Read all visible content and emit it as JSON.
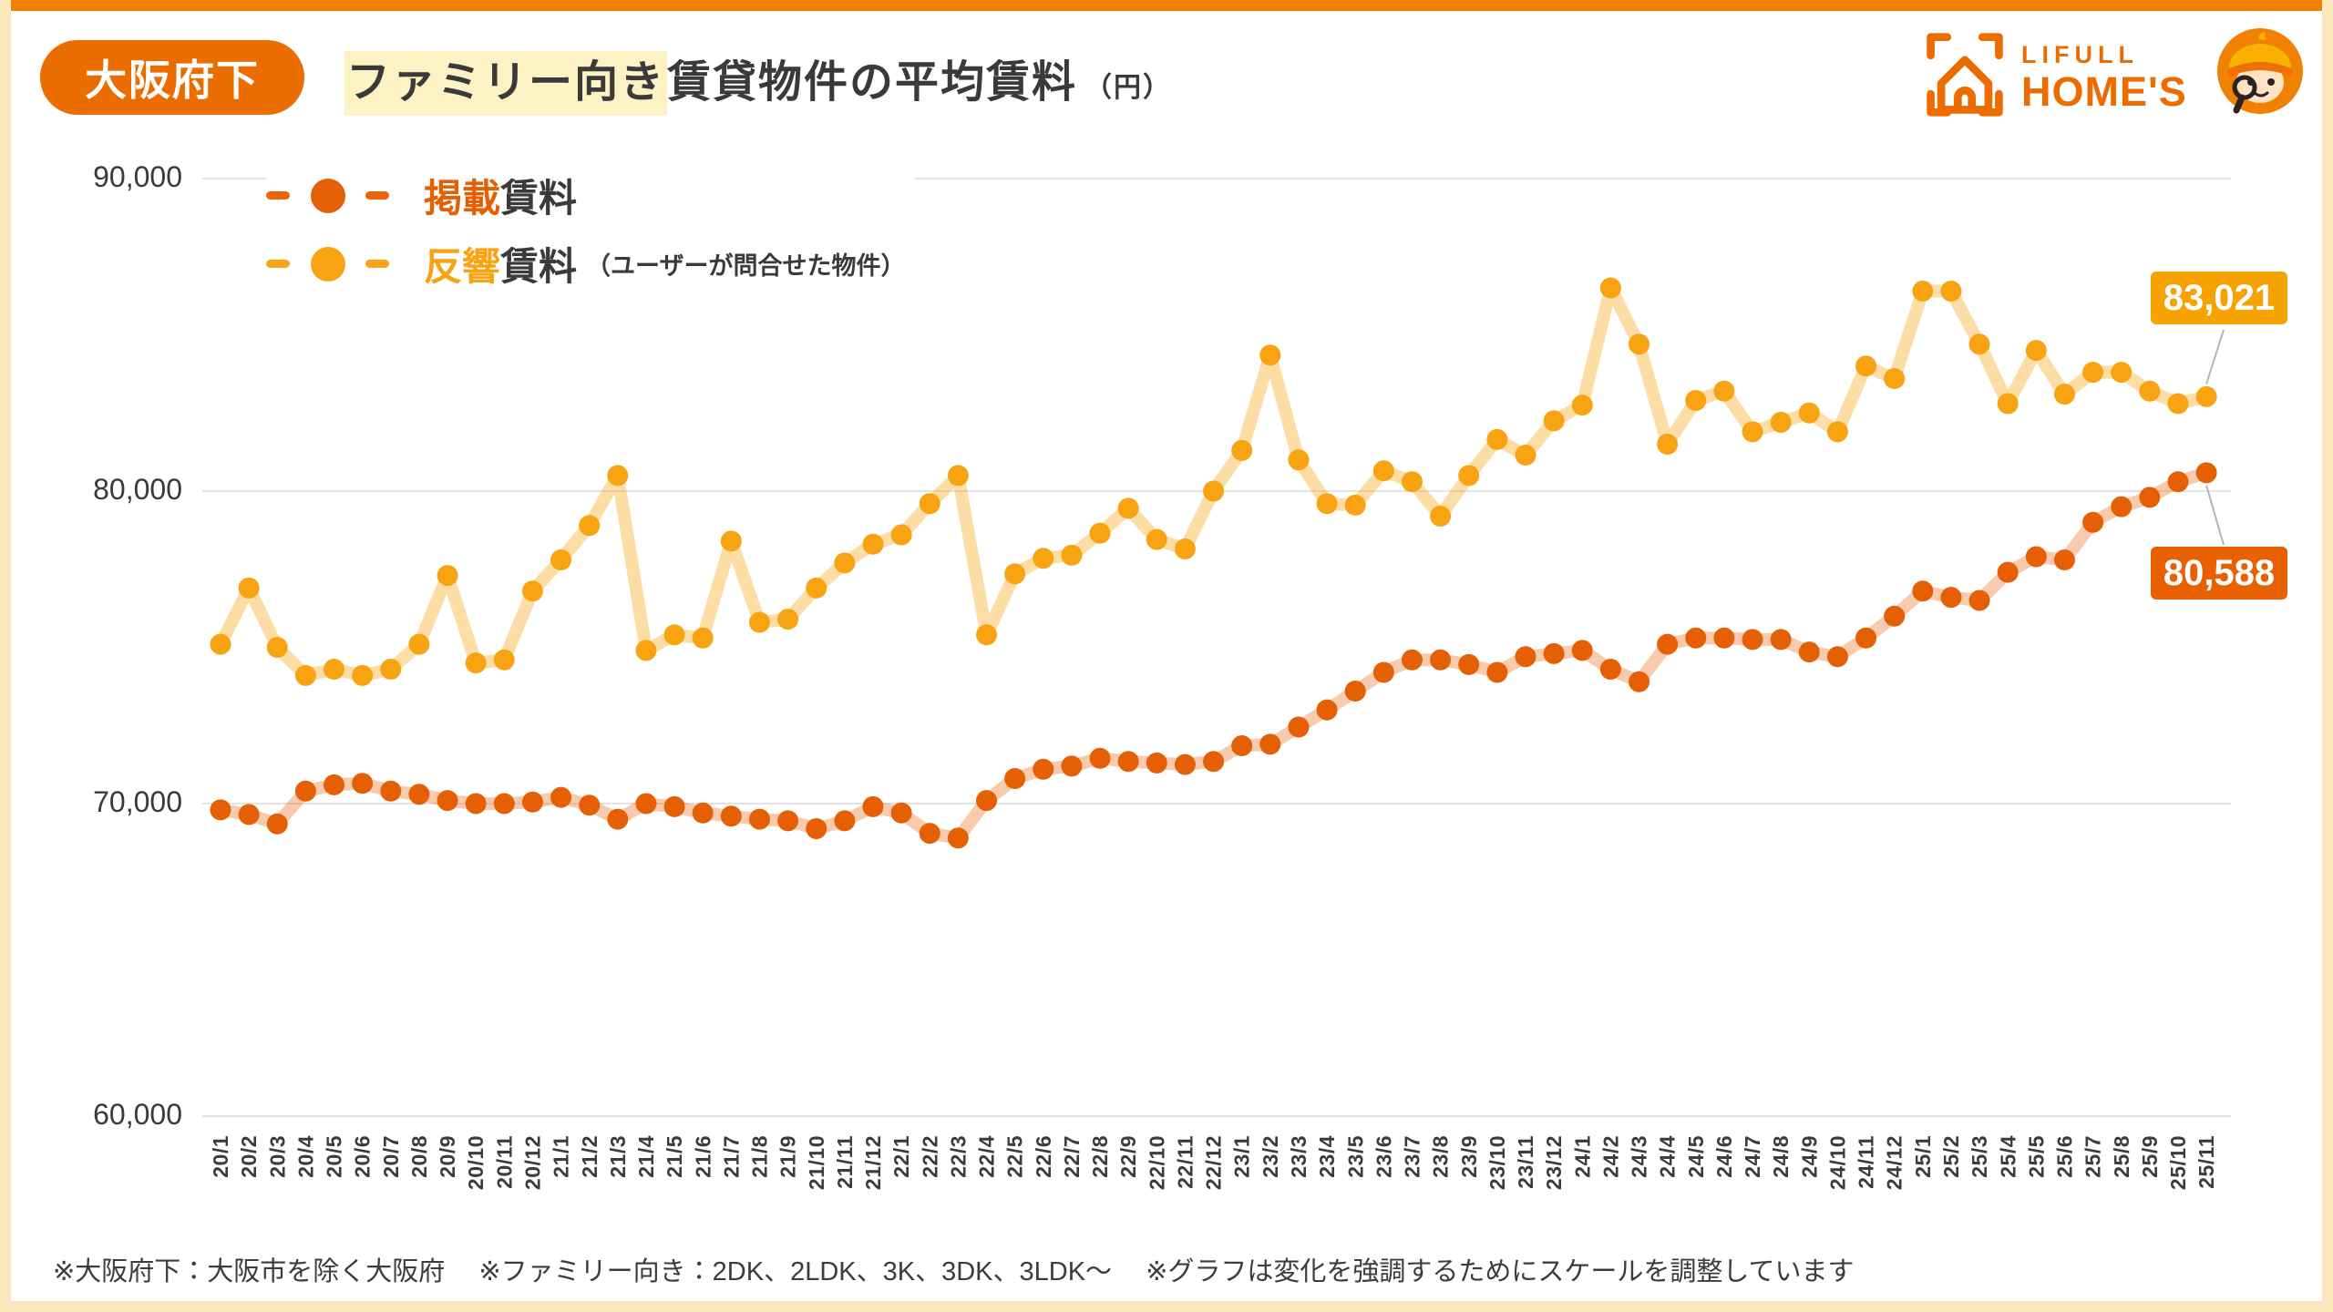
{
  "page": {
    "badge": "大阪府下",
    "title_highlight": "ファミリー向き",
    "title_rest": "賃貸物件の平均賃料",
    "title_unit": "（円）"
  },
  "logo": {
    "line1": "LIFULL",
    "line2": "HOME'S"
  },
  "legend": {
    "listed_prefix": "掲載",
    "listed_rest": "賃料",
    "inquiry_prefix": "反響",
    "inquiry_rest": "賃料",
    "inquiry_note": "（ユーザーが問合せた物件）"
  },
  "colors": {
    "brand_orange": "#ED6C00",
    "topbar": "#EF8200",
    "frame_cream": "#FAE7BE",
    "listed_marker": "#E55F04",
    "listed_line": "rgba(233,98,8,0.33)",
    "inquiry_marker": "#F7A312",
    "inquiry_line": "rgba(248,166,18,0.38)",
    "grid": "#E3E3E3",
    "text_dark": "#3A3A3A",
    "callout_listed_bg": "#E96000",
    "callout_inquiry_bg": "#F6A201"
  },
  "chart_data": {
    "type": "line",
    "grid": true,
    "ylim": [
      60000,
      90000
    ],
    "yticks": [
      90000,
      80000,
      70000,
      60000
    ],
    "ytick_labels": [
      "90,000",
      "80,000",
      "70,000",
      "60,000"
    ],
    "x_labels": [
      "20/1",
      "20/2",
      "20/3",
      "20/4",
      "20/5",
      "20/6",
      "20/7",
      "20/8",
      "20/9",
      "20/10",
      "20/11",
      "20/12",
      "21/1",
      "21/2",
      "21/3",
      "21/4",
      "21/5",
      "21/6",
      "21/7",
      "21/8",
      "21/9",
      "21/10",
      "21/11",
      "21/12",
      "22/1",
      "22/2",
      "22/3",
      "22/4",
      "22/5",
      "22/6",
      "22/7",
      "22/8",
      "22/9",
      "22/10",
      "22/11",
      "22/12",
      "23/1",
      "23/2",
      "23/3",
      "23/4",
      "23/5",
      "23/6",
      "23/7",
      "23/8",
      "23/9",
      "23/10",
      "23/11",
      "23/12",
      "24/1",
      "24/2",
      "24/3",
      "24/4",
      "24/5",
      "24/6",
      "24/7",
      "24/8",
      "24/9",
      "24/10",
      "24/11",
      "24/12",
      "25/1",
      "25/2",
      "25/3",
      "25/4",
      "25/5",
      "25/6",
      "25/7",
      "25/8",
      "25/9",
      "25/10",
      "25/11"
    ],
    "series": [
      {
        "name": "掲載賃料",
        "values": [
          69800,
          69650,
          69350,
          70400,
          70600,
          70650,
          70400,
          70300,
          70100,
          70000,
          70000,
          70050,
          70200,
          69950,
          69500,
          70000,
          69900,
          69700,
          69600,
          69500,
          69450,
          69200,
          69450,
          69900,
          69700,
          69050,
          68900,
          70100,
          70800,
          71100,
          71200,
          71450,
          71350,
          71300,
          71250,
          71350,
          71850,
          71900,
          72450,
          73000,
          73600,
          74200,
          74600,
          74600,
          74450,
          74200,
          74700,
          74800,
          74900,
          74300,
          73900,
          75100,
          75300,
          75300,
          75250,
          75250,
          74850,
          74700,
          75300,
          76000,
          76800,
          76600,
          76500,
          77400,
          77900,
          77800,
          79000,
          79500,
          79800,
          80300,
          80588
        ]
      },
      {
        "name": "反響賃料（ユーザーが問合せた物件）",
        "values": [
          75100,
          76900,
          75000,
          74100,
          74300,
          74100,
          74300,
          75100,
          77300,
          74500,
          74600,
          76800,
          77800,
          78900,
          80500,
          74900,
          75400,
          75300,
          78400,
          75800,
          75900,
          76900,
          77700,
          78300,
          78600,
          79600,
          80500,
          75400,
          77350,
          77850,
          77950,
          78650,
          79450,
          78450,
          78150,
          80000,
          81300,
          84350,
          81000,
          79600,
          79550,
          80650,
          80300,
          79200,
          80500,
          81650,
          81150,
          82250,
          82750,
          86500,
          84700,
          81500,
          82900,
          83200,
          81900,
          82200,
          82500,
          81900,
          84000,
          83600,
          86400,
          86400,
          84700,
          82800,
          84500,
          83100,
          83800,
          83800,
          83200,
          82800,
          83021
        ]
      }
    ],
    "end_labels": {
      "inquiry": "83,021",
      "listed": "80,588"
    }
  },
  "footer": {
    "note": "※大阪府下：大阪市を除く大阪府　 ※ファミリー向き：2DK、2LDK、3K、3DK、3LDK〜　 ※グラフは変化を強調するためにスケールを調整しています"
  }
}
